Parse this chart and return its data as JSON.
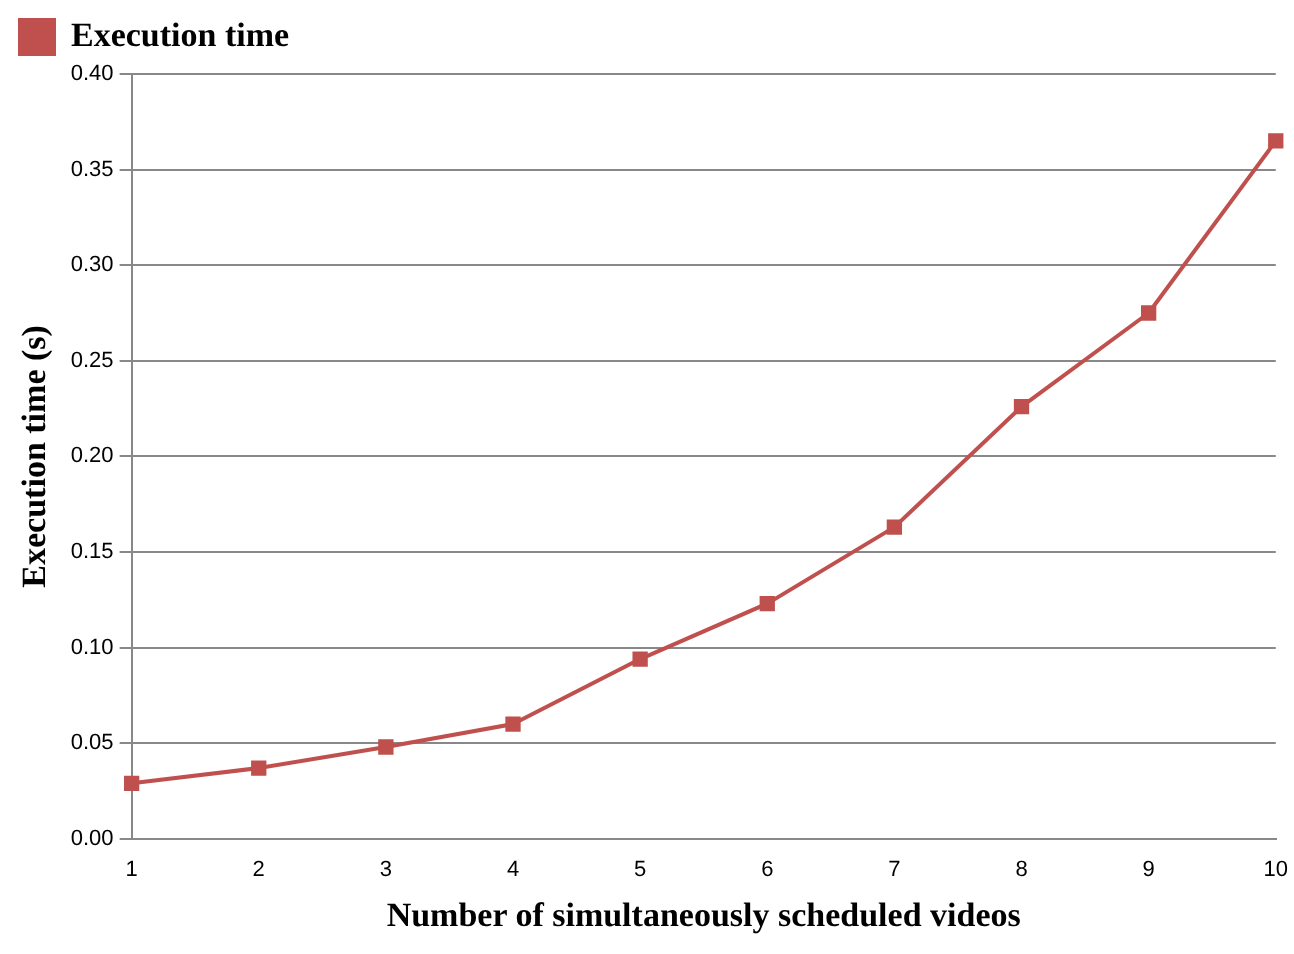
{
  "chart_data": {
    "type": "line",
    "xlabel": "Number of simultaneously scheduled videos",
    "ylabel": "Execution time (s)",
    "categories": [
      "1",
      "2",
      "3",
      "4",
      "5",
      "6",
      "7",
      "8",
      "9",
      "10"
    ],
    "series": [
      {
        "name": "Execution time",
        "color": "#c0504d",
        "values": [
          0.029,
          0.037,
          0.048,
          0.06,
          0.094,
          0.123,
          0.163,
          0.226,
          0.275,
          0.365
        ]
      }
    ],
    "ylim": [
      0,
      0.4
    ],
    "yticks": [
      {
        "value": 0,
        "label": "0.00"
      },
      {
        "value": 0.05,
        "label": "0.05"
      },
      {
        "value": 0.1,
        "label": "0.10"
      },
      {
        "value": 0.15,
        "label": "0.15"
      },
      {
        "value": 0.2,
        "label": "0.20"
      },
      {
        "value": 0.25,
        "label": "0.25"
      },
      {
        "value": 0.3,
        "label": "0.30"
      },
      {
        "value": 0.35,
        "label": "0.35"
      },
      {
        "value": 0.4,
        "label": "0.40"
      }
    ],
    "grid": "y",
    "legend": "top left",
    "marker": "square",
    "line_style": "solid"
  }
}
